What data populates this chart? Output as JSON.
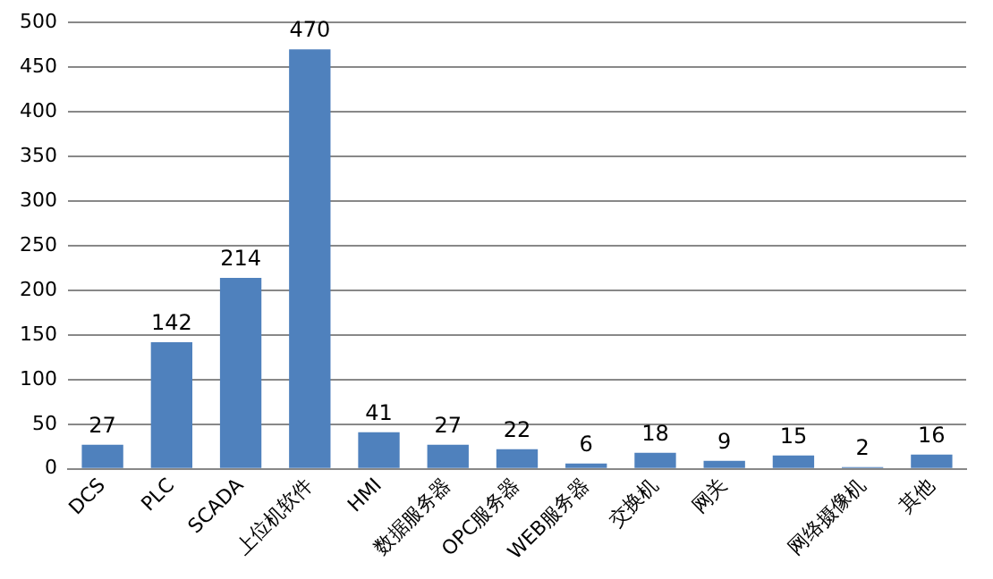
{
  "chart_data": {
    "type": "bar",
    "categories": [
      "DCS",
      "PLC",
      "SCADA",
      "上位机软件",
      "HMI",
      "数据服务器",
      "OPC服务器",
      "WEB服务器",
      "交换机",
      "网关",
      null,
      "网络摄像机",
      "其他"
    ],
    "values": [
      27,
      142,
      214,
      470,
      41,
      27,
      22,
      6,
      18,
      9,
      15,
      2,
      16
    ],
    "color": "#4f81bd",
    "ylim": [
      0,
      500
    ],
    "yticks": [
      0,
      50,
      100,
      150,
      200,
      250,
      300,
      350,
      400,
      450,
      500
    ],
    "grid": "y",
    "data_labels": true
  }
}
